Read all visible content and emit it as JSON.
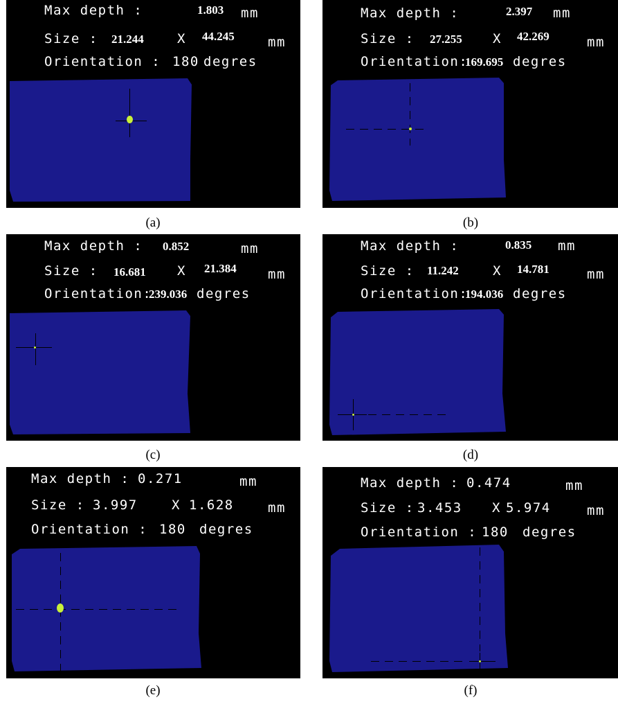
{
  "labels": {
    "max_depth": "Max depth :",
    "size": "Size :",
    "x_sep": "X",
    "unit": "mm",
    "orientation": "Orientation :",
    "orientation_tight": "Orientation:",
    "degrees": "degres"
  },
  "panels": [
    {
      "caption": "(a)",
      "max_depth": "1.803",
      "size_w": "21.244",
      "size_h": "44.245",
      "orientation": "180"
    },
    {
      "caption": "(b)",
      "max_depth": "2.397",
      "size_w": "27.255",
      "size_h": "42.269",
      "orientation": "169.695"
    },
    {
      "caption": "(c)",
      "max_depth": "0.852",
      "size_w": "16.681",
      "size_h": "21.384",
      "orientation": "239.036"
    },
    {
      "caption": "(d)",
      "max_depth": "0.835",
      "size_w": "11.242",
      "size_h": "14.781",
      "orientation": "194.036"
    },
    {
      "caption": "(e)",
      "max_depth": "0.271",
      "size_w": "3.997",
      "size_h": "1.628",
      "orientation": "180"
    },
    {
      "caption": "(f)",
      "max_depth": "0.474",
      "size_w": "3.453",
      "size_h": "5.974",
      "orientation": "180"
    }
  ],
  "colors": {
    "background": "#000000",
    "plate": "#1a1a8c",
    "marker": "#c8f03a",
    "text": "#ffffff"
  }
}
